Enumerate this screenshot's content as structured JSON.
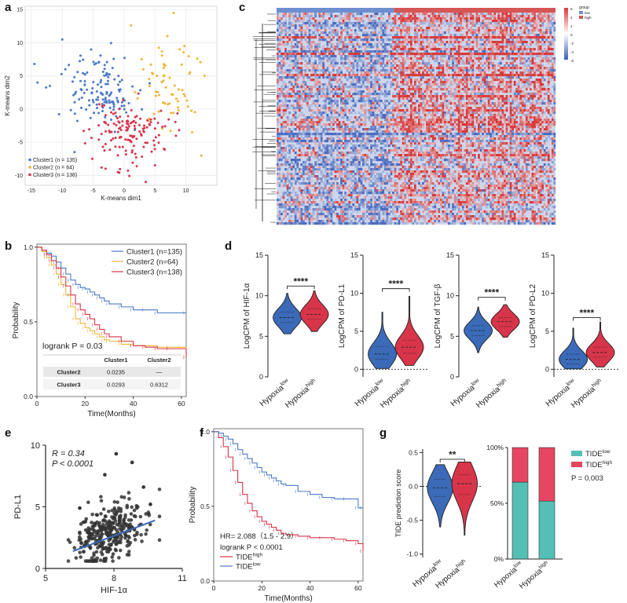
{
  "colors": {
    "blue": "#4a78c8",
    "orange": "#f0b534",
    "red": "#d8344a",
    "dblue": "#3a6ab8",
    "teal": "#54bfb4",
    "pink": "#e64661",
    "gray": "#666666",
    "heat_low": "#5b7ec6",
    "heat_high": "#d83a3a"
  },
  "chart_data": [
    {
      "panel": "a",
      "type": "scatter",
      "xlabel": "K-means dim1",
      "ylabel": "K-means dim2",
      "xlim": [
        -16,
        15
      ],
      "ylim": [
        -11.5,
        15.5
      ],
      "xticks": [
        -15,
        -10,
        -5,
        0,
        5,
        10
      ],
      "yticks": [
        -10,
        -5,
        0,
        5,
        10,
        15
      ],
      "xtick_labels": [
        "-15",
        "-10",
        "-5",
        "0",
        "5",
        "10"
      ],
      "ytick_labels": [
        "-10",
        "-5",
        "0",
        "5",
        "10",
        "15"
      ],
      "grid": true,
      "legend": "bottom-left",
      "series": [
        {
          "name": "Cluster1 (n = 135)",
          "n": 135,
          "color": "#4a78c8",
          "center": [
            -3.5,
            2.5
          ],
          "spread": [
            2.6,
            2.6
          ],
          "extra": [
            [
              -14.5,
              6.8
            ],
            [
              -14,
              4
            ],
            [
              -10,
              10.5
            ],
            [
              -9.5,
              6
            ],
            [
              -12,
              3.5
            ],
            [
              -8,
              -6.5
            ]
          ]
        },
        {
          "name": "Cluster2 (n = 64)",
          "n": 64,
          "color": "#f0b534",
          "center": [
            7,
            3.5
          ],
          "spread": [
            2.3,
            3.6
          ],
          "extra": [
            [
              8,
              14.5
            ],
            [
              12.5,
              -7
            ],
            [
              13,
              5
            ],
            [
              11,
              -3.5
            ],
            [
              7,
              11
            ]
          ]
        },
        {
          "name": "Cluster3 (n = 138)",
          "n": 138,
          "color": "#d8344a",
          "center": [
            1,
            -3.5
          ],
          "spread": [
            2.9,
            2.5
          ],
          "extra": [
            [
              3.5,
              -11
            ],
            [
              -3,
              -9
            ],
            [
              5,
              -8.5
            ],
            [
              -1,
              -9.5
            ]
          ]
        }
      ]
    },
    {
      "panel": "c",
      "type": "heatmap",
      "legend_title": "group",
      "legend_items": [
        "low",
        "high"
      ],
      "scale_labels": [
        "6",
        "4",
        "2",
        "0",
        "-2",
        "-4",
        "-6"
      ],
      "rows": 90,
      "cols": 140,
      "low_fraction": 0.42
    },
    {
      "panel": "b",
      "type": "line",
      "xlabel": "Time(Months)",
      "ylabel": "Probability",
      "xticks": [
        0,
        20,
        40,
        60
      ],
      "xtick_labels": [
        "0",
        "20",
        "40",
        "60"
      ],
      "yticks": [
        0,
        0.5,
        1.0
      ],
      "ytick_labels": [
        "0.0",
        "0.5",
        "1.0"
      ],
      "xlim": [
        0,
        62
      ],
      "ylim": [
        0,
        1.02
      ],
      "annotation": "logrank P = 0.03",
      "series": [
        {
          "name": "Cluster1 (n=135)",
          "color": "#4a78c8",
          "x": [
            0,
            2,
            4,
            6,
            8,
            10,
            12,
            14,
            16,
            18,
            20,
            22,
            24,
            26,
            28,
            30,
            35,
            40,
            45,
            50,
            62
          ],
          "y": [
            1,
            0.98,
            0.96,
            0.94,
            0.9,
            0.86,
            0.82,
            0.78,
            0.75,
            0.73,
            0.72,
            0.7,
            0.68,
            0.66,
            0.64,
            0.62,
            0.6,
            0.58,
            0.58,
            0.56,
            0.56
          ]
        },
        {
          "name": "Cluster2 (n=64)",
          "color": "#f0b534",
          "x": [
            0,
            2,
            4,
            6,
            8,
            10,
            12,
            14,
            16,
            18,
            20,
            22,
            24,
            26,
            28,
            30,
            35,
            40,
            45,
            50,
            55,
            60,
            62
          ],
          "y": [
            1,
            0.97,
            0.93,
            0.88,
            0.82,
            0.75,
            0.68,
            0.6,
            0.52,
            0.49,
            0.46,
            0.44,
            0.42,
            0.4,
            0.38,
            0.37,
            0.35,
            0.34,
            0.34,
            0.33,
            0.33,
            0.33,
            0.27
          ]
        },
        {
          "name": "Cluster3 (n=138)",
          "color": "#d8344a",
          "x": [
            0,
            2,
            4,
            6,
            8,
            10,
            12,
            14,
            16,
            18,
            20,
            22,
            24,
            26,
            28,
            30,
            35,
            40,
            45,
            50,
            55,
            62
          ],
          "y": [
            1,
            0.98,
            0.95,
            0.91,
            0.86,
            0.8,
            0.74,
            0.68,
            0.62,
            0.58,
            0.55,
            0.52,
            0.48,
            0.45,
            0.42,
            0.4,
            0.37,
            0.34,
            0.33,
            0.32,
            0.32,
            0.26
          ]
        }
      ],
      "table": {
        "columns": [
          "",
          "Cluster1",
          "Cluster2"
        ],
        "rows": [
          [
            "Cluster2",
            "0.0235",
            "—"
          ],
          [
            "Cluster3",
            "0.0293",
            "0.6312"
          ]
        ]
      }
    },
    {
      "panel": "d",
      "type": "violin",
      "xcats": [
        "Hypoxia",
        "Hypoxia"
      ],
      "xsups": [
        "low",
        "high"
      ],
      "plots": [
        {
          "ylabel": "LogCPM of HIF-1α",
          "ylim": [
            0,
            15
          ],
          "yticks": [
            0,
            5,
            10,
            15
          ],
          "ytick_labels": [
            "0",
            "5",
            "10",
            "15"
          ],
          "low": {
            "median": 7.3,
            "q1": 6.7,
            "q3": 8.0,
            "min": 5.3,
            "max": 10.3,
            "w": 0.24
          },
          "high": {
            "median": 7.7,
            "q1": 7.1,
            "q3": 8.4,
            "min": 5.6,
            "max": 10.6,
            "w": 0.27
          },
          "sig": "****",
          "sig_y": 11.2,
          "zero_line": false
        },
        {
          "ylabel": "LogCPM of PD-L1",
          "ylim": [
            -1,
            15
          ],
          "yticks": [
            0,
            5,
            10,
            15
          ],
          "ytick_labels": [
            "0",
            "5",
            "10",
            "15"
          ],
          "low": {
            "median": 2.0,
            "q1": 1.3,
            "q3": 3.0,
            "min": 0.1,
            "max": 7.5,
            "w": 0.26
          },
          "high": {
            "median": 2.9,
            "q1": 2.1,
            "q3": 3.8,
            "min": 0.5,
            "max": 9.6,
            "w": 0.26
          },
          "sig": "****",
          "sig_y": 10.6,
          "zero_line": true
        },
        {
          "ylabel": "LogCPM of TGF-β",
          "ylim": [
            0,
            15
          ],
          "yticks": [
            0,
            5,
            10,
            15
          ],
          "ytick_labels": [
            "0",
            "5",
            "10",
            "15"
          ],
          "low": {
            "median": 5.7,
            "q1": 5.1,
            "q3": 6.3,
            "min": 3.0,
            "max": 8.6,
            "w": 0.26
          },
          "high": {
            "median": 6.8,
            "q1": 6.2,
            "q3": 7.3,
            "min": 4.9,
            "max": 8.9,
            "w": 0.24
          },
          "sig": "****",
          "sig_y": 9.8,
          "zero_line": false
        },
        {
          "ylabel": "LogCPM of PD-L2",
          "ylim": [
            -1,
            15
          ],
          "yticks": [
            0,
            5,
            10,
            15
          ],
          "ytick_labels": [
            "0",
            "5",
            "10",
            "15"
          ],
          "low": {
            "median": 1.3,
            "q1": 0.7,
            "q3": 2.0,
            "min": 0.05,
            "max": 5.4,
            "w": 0.26
          },
          "high": {
            "median": 2.2,
            "q1": 1.6,
            "q3": 2.9,
            "min": 0.3,
            "max": 6.2,
            "w": 0.26
          },
          "sig": "****",
          "sig_y": 6.8,
          "zero_line": true
        }
      ]
    },
    {
      "panel": "e",
      "type": "scatter",
      "xlabel": "HIF-1α",
      "ylabel": "PD-L1",
      "xlim": [
        5,
        11
      ],
      "ylim": [
        0,
        10
      ],
      "xticks": [
        5,
        8,
        11
      ],
      "xtick_labels": [
        "5",
        "8",
        "11"
      ],
      "yticks": [
        0,
        5,
        10
      ],
      "ytick_labels": [
        "0",
        "5",
        "10"
      ],
      "n": 330,
      "center": [
        7.8,
        2.8
      ],
      "spread": [
        0.75,
        1.1
      ],
      "outliers": [
        [
          8.1,
          9.3
        ],
        [
          8.8,
          8.6
        ],
        [
          7.6,
          7.6
        ],
        [
          9.3,
          6.6
        ],
        [
          9.6,
          5.2
        ],
        [
          6.5,
          4.9
        ]
      ],
      "fit": {
        "x": [
          6.2,
          9.8
        ],
        "y": [
          1.4,
          3.9
        ],
        "color": "#3a6ab8"
      },
      "stats": {
        "r": "R = 0.34",
        "p": "P < 0.0001"
      }
    },
    {
      "panel": "f",
      "type": "line",
      "xlabel": "Time(Months)",
      "ylabel": "Probability",
      "xticks": [
        0,
        20,
        40,
        60
      ],
      "xtick_labels": [
        "0",
        "20",
        "40",
        "60"
      ],
      "yticks": [
        0,
        0.5,
        1.0
      ],
      "ytick_labels": [
        "0.0",
        "0.5",
        "1.0"
      ],
      "xlim": [
        0,
        62
      ],
      "ylim": [
        0,
        1.02
      ],
      "hr": "HR= 2.088（1.5 - 2.9）",
      "annotation": "logrank P < 0.0001",
      "series": [
        {
          "name": "TIDE",
          "sup": "high",
          "color": "#d8344a",
          "x": [
            0,
            2,
            4,
            6,
            8,
            10,
            12,
            14,
            16,
            18,
            20,
            22,
            24,
            26,
            28,
            30,
            35,
            40,
            45,
            50,
            55,
            60,
            62
          ],
          "y": [
            1,
            0.96,
            0.9,
            0.83,
            0.74,
            0.66,
            0.58,
            0.52,
            0.47,
            0.43,
            0.4,
            0.38,
            0.36,
            0.34,
            0.32,
            0.31,
            0.3,
            0.29,
            0.29,
            0.28,
            0.27,
            0.25,
            0.2
          ]
        },
        {
          "name": "TIDE",
          "sup": "low",
          "color": "#4a78c8",
          "x": [
            0,
            2,
            4,
            6,
            8,
            10,
            12,
            14,
            16,
            18,
            20,
            22,
            24,
            26,
            28,
            30,
            35,
            40,
            45,
            50,
            55,
            60,
            62
          ],
          "y": [
            1,
            0.99,
            0.97,
            0.95,
            0.92,
            0.88,
            0.85,
            0.82,
            0.79,
            0.76,
            0.73,
            0.71,
            0.69,
            0.67,
            0.65,
            0.64,
            0.6,
            0.58,
            0.56,
            0.55,
            0.55,
            0.49,
            0.49
          ]
        }
      ]
    },
    {
      "panel": "g-left",
      "type": "violin",
      "ylabel": "TIDE prediction score",
      "ylim": [
        -1.05,
        0.55
      ],
      "yticks": [
        -1,
        -0.5,
        0,
        0.5
      ],
      "ytick_labels": [
        "-1.0",
        "-0.5",
        "0.0",
        "0.5"
      ],
      "xcats": [
        "Hypoxia",
        "Hypoxia"
      ],
      "xsups": [
        "low",
        "high"
      ],
      "low": {
        "median": -0.02,
        "q1": -0.15,
        "q3": 0.1,
        "min": -0.6,
        "max": 0.32,
        "w": 0.26
      },
      "high": {
        "median": 0.04,
        "q1": -0.12,
        "q3": 0.17,
        "min": -0.72,
        "max": 0.36,
        "w": 0.26
      },
      "sig": "**",
      "sig_y": 0.4,
      "zero_line": true
    },
    {
      "panel": "g-right",
      "type": "bar",
      "stacked": true,
      "categories": [
        "Hypoxia",
        "Hypoxia"
      ],
      "sups": [
        "low",
        "high"
      ],
      "yticks": [
        0,
        50,
        100
      ],
      "ytick_labels": [
        "0%",
        "50%",
        "100%"
      ],
      "series": [
        {
          "name": "TIDE",
          "sup": "low",
          "color": "#54bfb4",
          "values": [
            69,
            52
          ]
        },
        {
          "name": "TIDE",
          "sup": "high",
          "color": "#e64661",
          "values": [
            31,
            48
          ]
        }
      ],
      "annotation": "P = 0.003"
    }
  ],
  "panel_labels": [
    "a",
    "b",
    "c",
    "d",
    "e",
    "f",
    "g"
  ]
}
